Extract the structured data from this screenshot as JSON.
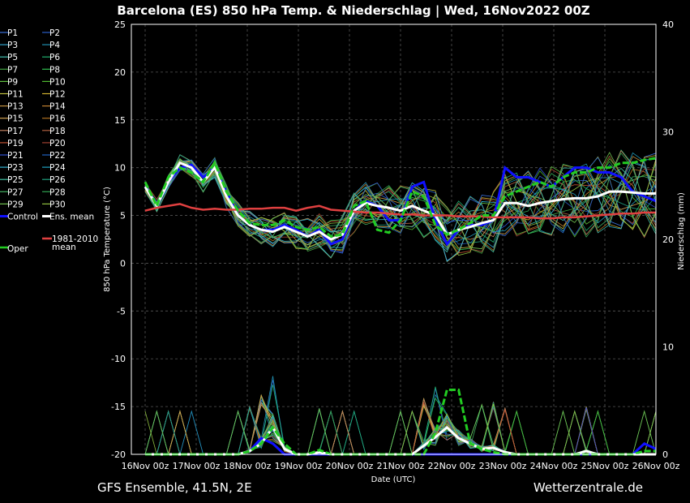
{
  "footer": {
    "left": "GFS Ensemble, 41.5N, 2E",
    "right": "Wetterzentrale.de"
  },
  "colors": {
    "control": "#1010ff",
    "ens_mean": "#ffffff",
    "clim": "#e04040",
    "oper": "#22cc22",
    "background": "#000000",
    "grid": "#555555"
  },
  "chart_data": {
    "type": "line",
    "title": "Barcelona  (ES)  850 hPa Temp. & Niederschlag | Wed, 16Nov2022 00Z",
    "xlabel": "Date (UTC)",
    "ylabel": "850 hPa Temperature (°C)",
    "y2label": "Niederschlag (mm)",
    "ylim": [
      -20,
      25
    ],
    "y2lim": [
      0,
      40
    ],
    "x_ticks": [
      "16Nov 00z",
      "17Nov 00z",
      "18Nov 00z",
      "19Nov 00z",
      "20Nov 00z",
      "21Nov 00z",
      "22Nov 00z",
      "23Nov 00z",
      "24Nov 00z",
      "25Nov 00z",
      "26Nov 00z"
    ],
    "y_ticks": [
      25,
      20,
      15,
      10,
      5,
      0,
      -5,
      -10,
      -15,
      -20
    ],
    "y2_ticks": [
      40,
      30,
      20,
      10,
      0
    ],
    "x_step_hours": 6,
    "grid": true,
    "legend_position": "left",
    "legend": [
      [
        "P1",
        "P2"
      ],
      [
        "P3",
        "P4"
      ],
      [
        "P5",
        "P6"
      ],
      [
        "P7",
        "P8"
      ],
      [
        "P9",
        "P10"
      ],
      [
        "P11",
        "P12"
      ],
      [
        "P13",
        "P14"
      ],
      [
        "P15",
        "P16"
      ],
      [
        "P17",
        "P18"
      ],
      [
        "P19",
        "P20"
      ],
      [
        "P21",
        "P22"
      ],
      [
        "P23",
        "P24"
      ],
      [
        "P25",
        "P26"
      ],
      [
        "P27",
        "P28"
      ],
      [
        "P29",
        "P30"
      ],
      [
        "Control",
        "Ens. mean"
      ]
    ],
    "legend_extra": {
      "clim": "1981-2010 mean",
      "oper": "Oper"
    },
    "member_colors": [
      "#3a6fd8",
      "#2a5fc8",
      "#30a0c8",
      "#2090b0",
      "#40c0b0",
      "#20b070",
      "#40a040",
      "#30c050",
      "#60c040",
      "#50b830",
      "#c0c040",
      "#d0b030",
      "#c09040",
      "#c08030",
      "#d0a050",
      "#b07020",
      "#c08060",
      "#b06040",
      "#c05030",
      "#a04030",
      "#3050d0",
      "#2060c0",
      "#30b0d0",
      "#20a0c0",
      "#40c0a0",
      "#20a080",
      "#40b060",
      "#30a050",
      "#70c050",
      "#90c040"
    ],
    "series": [
      {
        "name": "Control",
        "axis": "temp",
        "values": [
          8.0,
          6.0,
          8.5,
          10.0,
          10.3,
          9.0,
          10.0,
          7.5,
          5.0,
          4.0,
          3.5,
          3.5,
          4.0,
          3.5,
          2.8,
          3.5,
          2.0,
          2.5,
          5.5,
          6.5,
          6.0,
          4.5,
          4.5,
          8.0,
          8.5,
          4.5,
          2.0,
          3.5,
          4.0,
          4.0,
          4.5,
          10.0,
          9.0,
          9.0,
          8.5,
          8.0,
          9.0,
          10.0,
          10.0,
          9.5,
          9.5,
          9.0,
          7.5,
          7.0,
          6.5
        ]
      },
      {
        "name": "Ens. mean",
        "axis": "temp",
        "values": [
          8.0,
          6.0,
          8.5,
          10.5,
          10.0,
          8.5,
          10.0,
          7.0,
          5.0,
          4.0,
          3.5,
          3.3,
          3.8,
          3.3,
          2.8,
          3.3,
          2.5,
          3.0,
          5.5,
          6.3,
          6.0,
          5.8,
          5.5,
          6.0,
          5.5,
          5.0,
          3.0,
          3.5,
          3.8,
          4.2,
          4.5,
          6.3,
          6.3,
          6.0,
          6.3,
          6.5,
          6.7,
          6.8,
          6.8,
          7.0,
          7.5,
          7.5,
          7.4,
          7.3,
          7.3
        ]
      },
      {
        "name": "1981-2010 mean",
        "axis": "temp",
        "values": [
          5.5,
          5.8,
          6.0,
          6.2,
          5.8,
          5.6,
          5.7,
          5.6,
          5.6,
          5.7,
          5.7,
          5.8,
          5.8,
          5.5,
          5.8,
          6.0,
          5.6,
          5.5,
          5.4,
          5.3,
          5.3,
          5.2,
          5.1,
          5.1,
          5.0,
          5.0,
          5.0,
          4.9,
          4.9,
          4.9,
          4.8,
          4.8,
          4.8,
          4.8,
          4.7,
          4.7,
          4.8,
          4.8,
          4.9,
          5.0,
          5.1,
          5.2,
          5.2,
          5.3,
          5.3
        ]
      },
      {
        "name": "Oper",
        "axis": "temp",
        "values": [
          8.5,
          6.0,
          9.0,
          10.0,
          9.5,
          8.5,
          10.5,
          7.5,
          5.5,
          4.2,
          4.0,
          4.0,
          4.5,
          3.8,
          3.5,
          3.8,
          2.8,
          3.0,
          6.0,
          6.5,
          3.5,
          3.2,
          4.5,
          7.5,
          7.0,
          4.0,
          3.0,
          3.5,
          4.2,
          5.0,
          5.0,
          7.0,
          7.5,
          8.0,
          8.5,
          8.0,
          9.0,
          9.5,
          9.5,
          10.0,
          10.0,
          10.5,
          10.5,
          10.8,
          11.0
        ]
      },
      {
        "name": "Control",
        "axis": "precip",
        "values": [
          0,
          0,
          0,
          0,
          0,
          0,
          0,
          0,
          0,
          0.3,
          1.5,
          1.0,
          0,
          0,
          0,
          0,
          0,
          0,
          0,
          0,
          0,
          0,
          0,
          0,
          0,
          0,
          0,
          0,
          0,
          0,
          0,
          0,
          0,
          0,
          0,
          0,
          0,
          0,
          0,
          0,
          0,
          0,
          0,
          1.0,
          0.5
        ]
      },
      {
        "name": "Ens. mean",
        "axis": "precip",
        "values": [
          0,
          0,
          0,
          0,
          0,
          0,
          0,
          0,
          0,
          0.3,
          1.0,
          2.5,
          0.5,
          0,
          0,
          0.2,
          0,
          0,
          0,
          0,
          0,
          0,
          0,
          0,
          0.8,
          1.6,
          2.5,
          1.5,
          1.0,
          0.5,
          0.6,
          0.2,
          0,
          0,
          0,
          0,
          0,
          0,
          0.3,
          0,
          0,
          0,
          0,
          0,
          0
        ]
      },
      {
        "name": "Oper",
        "axis": "precip",
        "values": [
          0,
          0,
          0,
          0,
          0,
          0,
          0,
          0,
          0,
          0.3,
          1.0,
          2.5,
          1.0,
          0,
          0,
          0.4,
          0,
          0,
          0,
          0,
          0,
          0,
          0,
          0,
          0,
          2.0,
          6.0,
          6.0,
          1.0,
          0.5,
          0.2,
          0,
          0,
          0,
          0,
          0,
          0,
          0,
          0,
          0,
          0,
          0,
          0,
          0.3,
          0.3
        ]
      }
    ]
  }
}
